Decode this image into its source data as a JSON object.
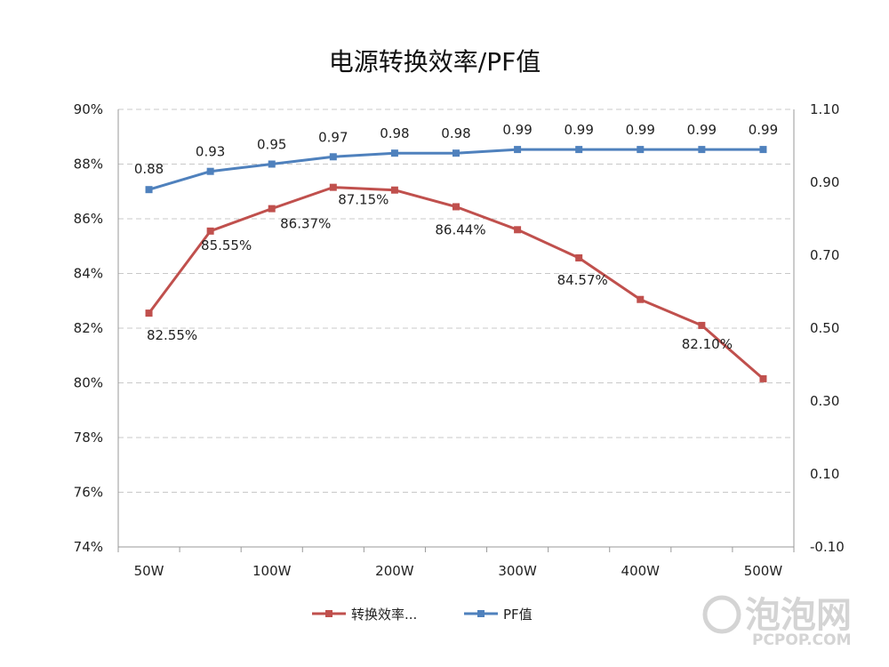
{
  "chart_data": {
    "type": "line",
    "title": "电源转换效率/PF值",
    "xlabel": "",
    "ylabel": "",
    "categories": [
      "50W",
      "",
      "100W",
      "",
      "200W",
      "",
      "300W",
      "",
      "400W",
      "",
      "500W"
    ],
    "y_left": {
      "ticks": [
        "90%",
        "88%",
        "86%",
        "84%",
        "82%",
        "80%",
        "78%",
        "76%",
        "74%"
      ],
      "ylim": [
        74,
        90
      ]
    },
    "y_right": {
      "ticks": [
        "1.10",
        "0.90",
        "0.70",
        "0.50",
        "0.30",
        "0.10",
        "-0.10"
      ],
      "ylim": [
        -0.1,
        1.1
      ]
    },
    "grid": true,
    "legend_position": "bottom",
    "series": [
      {
        "name": "转换效率...",
        "axis": "left",
        "color": "#c0504d",
        "values": [
          82.55,
          85.55,
          86.37,
          87.15,
          87.05,
          86.44,
          85.6,
          84.57,
          83.05,
          82.1,
          80.15
        ],
        "labels": [
          "82.55%",
          "85.55%",
          "86.37%",
          "87.15%",
          "",
          "86.44%",
          "",
          "84.57%",
          "",
          "82.10%",
          ""
        ]
      },
      {
        "name": "PF值",
        "axis": "right",
        "color": "#4f81bd",
        "values": [
          0.88,
          0.93,
          0.95,
          0.97,
          0.98,
          0.98,
          0.99,
          0.99,
          0.99,
          0.99,
          0.99
        ],
        "labels": [
          "0.88",
          "0.93",
          "0.95",
          "0.97",
          "0.98",
          "0.98",
          "0.99",
          "0.99",
          "0.99",
          "0.99",
          "0.99"
        ]
      }
    ]
  },
  "watermark": {
    "logo_text": "泡泡网",
    "site": "PCPOP.COM"
  }
}
